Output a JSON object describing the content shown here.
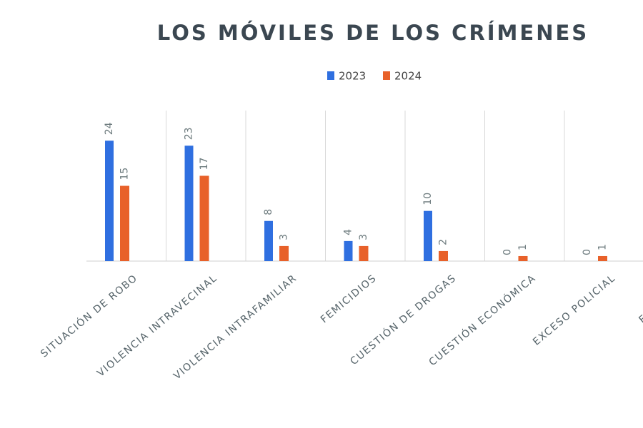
{
  "chart_data": {
    "type": "bar",
    "title": "LOS MÓVILES DE LOS CRÍMENES",
    "categories": [
      "SITUACIÓN DE ROBO",
      "VIOLENCIA INTRAVECINAL",
      "VIOLENCIA INTRAFAMILIAR",
      "FEMICIDIOS",
      "CUESTIÓN DE DROGAS",
      "CUESTIÓN ECONÓMICA",
      "EXCESO POLICIAL",
      "ENFRENTAN"
    ],
    "series": [
      {
        "name": "2023",
        "color": "#2f6fe0",
        "values": [
          24,
          23,
          8,
          4,
          10,
          0,
          0,
          null
        ]
      },
      {
        "name": "2024",
        "color": "#e8612a",
        "values": [
          15,
          17,
          3,
          3,
          2,
          1,
          1,
          null
        ]
      }
    ],
    "ylim": [
      0,
      30
    ],
    "grid": true,
    "legend": "top"
  }
}
